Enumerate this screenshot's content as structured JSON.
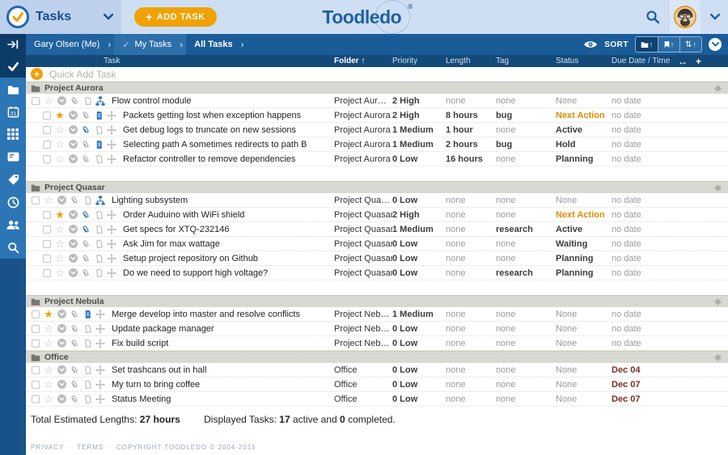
{
  "header": {
    "app_title": "Tasks",
    "add_task_plus": "+",
    "add_task_label": "ADD TASK",
    "logo_left": "Toodle",
    "logo_right": "do",
    "logo_reg": "®"
  },
  "breadcrumb": {
    "items": [
      {
        "label": "Gary Olsen (Me)",
        "check": false,
        "active": false
      },
      {
        "label": "My Tasks",
        "check": true,
        "active": false
      },
      {
        "label": "All Tasks",
        "check": false,
        "active": true
      }
    ],
    "sort_label": "SORT"
  },
  "columns": {
    "task": "Task",
    "folder": "Folder ↑",
    "priority": "Priority",
    "length": "Length",
    "tag": "Tag",
    "status": "Status",
    "due": "Due Date / Time",
    "resize_icon": "↔",
    "add_icon": "+"
  },
  "quick_add": {
    "placeholder": "Quick Add Task"
  },
  "sidebar": {
    "items": [
      "tasks-check",
      "folder",
      "calendar",
      "grid",
      "notes",
      "tag",
      "clock",
      "collaborators",
      "search"
    ],
    "active": "tasks-check"
  },
  "colors": {
    "accent_orange": "#f0a202",
    "brand_navy": "#20619f",
    "status_orange": "#dd8e00",
    "due_date_red": "#7d2d22",
    "link_blue": "#2e75b5"
  },
  "table": {
    "sections": [
      {
        "name": "Project Aurora",
        "gap_before": false,
        "tasks": [
          {
            "name": "Flow control module",
            "folder": "Project Aur…",
            "priority": "2 High",
            "length": "none",
            "tag": "none",
            "status": "None",
            "due": "no date",
            "starred": false,
            "attachment": false,
            "note": false,
            "parent": true,
            "indent": false
          },
          {
            "name": "Packets getting lost when exception happens",
            "folder": "Project Aurora",
            "priority": "2 High",
            "length": "8 hours",
            "tag": "bug",
            "status": "Next Action",
            "due": "no date",
            "starred": true,
            "attachment": false,
            "note": true,
            "parent": false,
            "indent": true
          },
          {
            "name": "Get debug logs to truncate on new sessions",
            "folder": "Project Aurora",
            "priority": "1 Medium",
            "length": "1 hour",
            "tag": "none",
            "status": "Active",
            "due": "no date",
            "starred": false,
            "attachment": true,
            "note": false,
            "parent": false,
            "indent": true
          },
          {
            "name": "Selecting path A sometimes redirects to path B",
            "folder": "Project Aurora",
            "priority": "1 Medium",
            "length": "2 hours",
            "tag": "bug",
            "status": "Hold",
            "due": "no date",
            "starred": false,
            "attachment": false,
            "note": true,
            "parent": false,
            "indent": true
          },
          {
            "name": "Refactor controller to remove dependencies",
            "folder": "Project Aurora",
            "priority": "0 Low",
            "length": "16 hours",
            "tag": "none",
            "status": "Planning",
            "due": "no date",
            "starred": false,
            "attachment": false,
            "note": false,
            "parent": false,
            "indent": true
          }
        ]
      },
      {
        "name": "Project Quasar",
        "gap_before": true,
        "tasks": [
          {
            "name": "Lighting subsystem",
            "folder": "Project Qua…",
            "priority": "0 Low",
            "length": "none",
            "tag": "none",
            "status": "None",
            "due": "no date",
            "starred": false,
            "attachment": false,
            "note": false,
            "parent": true,
            "indent": false
          },
          {
            "name": "Order Auduino with WiFi shield",
            "folder": "Project Quasar",
            "priority": "2 High",
            "length": "none",
            "tag": "none",
            "status": "Next Action",
            "due": "no date",
            "starred": true,
            "attachment": true,
            "note": false,
            "parent": false,
            "indent": true
          },
          {
            "name": "Get specs for XTQ-232146",
            "folder": "Project Quasar",
            "priority": "1 Medium",
            "length": "none",
            "tag": "research",
            "status": "Active",
            "due": "no date",
            "starred": false,
            "attachment": true,
            "note": false,
            "parent": false,
            "indent": true
          },
          {
            "name": "Ask Jim for max wattage",
            "folder": "Project Quasar",
            "priority": "0 Low",
            "length": "none",
            "tag": "none",
            "status": "Waiting",
            "due": "no date",
            "starred": false,
            "attachment": false,
            "note": false,
            "parent": false,
            "indent": true
          },
          {
            "name": "Setup project repository on Github",
            "folder": "Project Quasar",
            "priority": "0 Low",
            "length": "none",
            "tag": "none",
            "status": "Planning",
            "due": "no date",
            "starred": false,
            "attachment": false,
            "note": false,
            "parent": false,
            "indent": true
          },
          {
            "name": "Do we need to support high voltage?",
            "folder": "Project Quasar",
            "priority": "0 Low",
            "length": "none",
            "tag": "research",
            "status": "Planning",
            "due": "no date",
            "starred": false,
            "attachment": false,
            "note": false,
            "parent": false,
            "indent": true
          }
        ]
      },
      {
        "name": "Project Nebula",
        "gap_before": true,
        "tasks": [
          {
            "name": "Merge develop into master and resolve conflicts",
            "folder": "Project Neb…",
            "priority": "1 Medium",
            "length": "none",
            "tag": "none",
            "status": "None",
            "due": "no date",
            "starred": true,
            "attachment": false,
            "note": true,
            "parent": false,
            "indent": false
          },
          {
            "name": "Update package manager",
            "folder": "Project Neb…",
            "priority": "0 Low",
            "length": "none",
            "tag": "none",
            "status": "None",
            "due": "no date",
            "starred": false,
            "attachment": false,
            "note": false,
            "parent": false,
            "indent": false
          },
          {
            "name": "Fix build script",
            "folder": "Project Neb…",
            "priority": "0 Low",
            "length": "none",
            "tag": "none",
            "status": "None",
            "due": "no date",
            "starred": false,
            "attachment": false,
            "note": false,
            "parent": false,
            "indent": false
          }
        ]
      },
      {
        "name": "Office",
        "gap_before": false,
        "tasks": [
          {
            "name": "Set trashcans out in hall",
            "folder": "Office",
            "priority": "0 Low",
            "length": "none",
            "tag": "none",
            "status": "None",
            "due": "Dec 04",
            "starred": false,
            "attachment": false,
            "note": false,
            "parent": false,
            "indent": false
          },
          {
            "name": "My turn to bring coffee",
            "folder": "Office",
            "priority": "0 Low",
            "length": "none",
            "tag": "none",
            "status": "None",
            "due": "Dec 07",
            "starred": false,
            "attachment": false,
            "note": false,
            "parent": false,
            "indent": false
          },
          {
            "name": "Status Meeting",
            "folder": "Office",
            "priority": "0 Low",
            "length": "none",
            "tag": "none",
            "status": "None",
            "due": "Dec 07",
            "starred": false,
            "attachment": false,
            "note": false,
            "parent": false,
            "indent": false
          }
        ]
      }
    ]
  },
  "summary": {
    "lengths_label": "Total Estimated Lengths:",
    "lengths_value": "27 hours",
    "displayed_label": "Displayed Tasks:",
    "active_count": "17",
    "mid_text": "active and",
    "completed_count": "0",
    "end_text": "completed."
  },
  "legal": {
    "privacy": "PRIVACY",
    "terms": "TERMS",
    "copyright": "COPYRIGHT TOODLEDO © 2004-2015"
  }
}
